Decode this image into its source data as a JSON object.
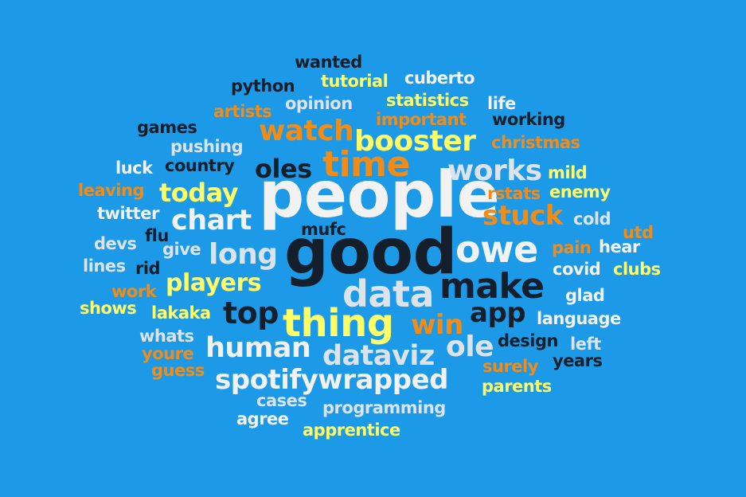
{
  "background": "#1c9ae8",
  "palette": {
    "white": "#f2f2f2",
    "dark": "#141f2b",
    "yellow": "#ffff66",
    "orange": "#f28c18",
    "light": "#dde3ea"
  },
  "words": [
    {
      "text": "people",
      "weight": 100,
      "color": "white"
    },
    {
      "text": "good",
      "weight": 100,
      "color": "dark"
    },
    {
      "text": "time",
      "weight": 60,
      "color": "orange"
    },
    {
      "text": "data",
      "weight": 60,
      "color": "light"
    },
    {
      "text": "make",
      "weight": 55,
      "color": "dark"
    },
    {
      "text": "thing",
      "weight": 55,
      "color": "yellow"
    },
    {
      "text": "owe",
      "weight": 52,
      "color": "white"
    },
    {
      "text": "booster",
      "weight": 45,
      "color": "yellow"
    },
    {
      "text": "works",
      "weight": 45,
      "color": "light"
    },
    {
      "text": "watch",
      "weight": 45,
      "color": "orange"
    },
    {
      "text": "long",
      "weight": 45,
      "color": "light"
    },
    {
      "text": "chart",
      "weight": 42,
      "color": "white"
    },
    {
      "text": "top",
      "weight": 42,
      "color": "dark"
    },
    {
      "text": "human",
      "weight": 40,
      "color": "white"
    },
    {
      "text": "dataviz",
      "weight": 40,
      "color": "light"
    },
    {
      "text": "spotifywrapped",
      "weight": 40,
      "color": "white"
    },
    {
      "text": "ole",
      "weight": 40,
      "color": "light"
    },
    {
      "text": "stuck",
      "weight": 40,
      "color": "orange"
    },
    {
      "text": "app",
      "weight": 38,
      "color": "dark"
    },
    {
      "text": "win",
      "weight": 38,
      "color": "orange"
    },
    {
      "text": "today",
      "weight": 36,
      "color": "yellow"
    },
    {
      "text": "players",
      "weight": 36,
      "color": "yellow"
    },
    {
      "text": "oles",
      "weight": 34,
      "color": "dark"
    },
    {
      "text": "wanted",
      "weight": 20,
      "color": "dark"
    },
    {
      "text": "python",
      "weight": 20,
      "color": "dark"
    },
    {
      "text": "tutorial",
      "weight": 20,
      "color": "yellow"
    },
    {
      "text": "cuberto",
      "weight": 20,
      "color": "white"
    },
    {
      "text": "artists",
      "weight": 20,
      "color": "orange"
    },
    {
      "text": "opinion",
      "weight": 20,
      "color": "light"
    },
    {
      "text": "statistics",
      "weight": 20,
      "color": "yellow"
    },
    {
      "text": "life",
      "weight": 20,
      "color": "white"
    },
    {
      "text": "games",
      "weight": 20,
      "color": "dark"
    },
    {
      "text": "important",
      "weight": 20,
      "color": "orange"
    },
    {
      "text": "working",
      "weight": 20,
      "color": "dark"
    },
    {
      "text": "pushing",
      "weight": 20,
      "color": "light"
    },
    {
      "text": "christmas",
      "weight": 20,
      "color": "orange"
    },
    {
      "text": "luck",
      "weight": 20,
      "color": "white"
    },
    {
      "text": "country",
      "weight": 20,
      "color": "dark"
    },
    {
      "text": "mild",
      "weight": 20,
      "color": "yellow"
    },
    {
      "text": "leaving",
      "weight": 20,
      "color": "orange"
    },
    {
      "text": "rstats",
      "weight": 20,
      "color": "orange"
    },
    {
      "text": "enemy",
      "weight": 20,
      "color": "yellow"
    },
    {
      "text": "twitter",
      "weight": 20,
      "color": "white"
    },
    {
      "text": "cold",
      "weight": 20,
      "color": "light"
    },
    {
      "text": "mufc",
      "weight": 20,
      "color": "dark"
    },
    {
      "text": "devs",
      "weight": 20,
      "color": "light"
    },
    {
      "text": "flu",
      "weight": 20,
      "color": "dark"
    },
    {
      "text": "utd",
      "weight": 20,
      "color": "orange"
    },
    {
      "text": "give",
      "weight": 20,
      "color": "light"
    },
    {
      "text": "pain",
      "weight": 20,
      "color": "orange"
    },
    {
      "text": "hear",
      "weight": 20,
      "color": "white"
    },
    {
      "text": "lines",
      "weight": 20,
      "color": "light"
    },
    {
      "text": "rid",
      "weight": 20,
      "color": "dark"
    },
    {
      "text": "covid",
      "weight": 20,
      "color": "white"
    },
    {
      "text": "clubs",
      "weight": 20,
      "color": "yellow"
    },
    {
      "text": "work",
      "weight": 20,
      "color": "orange"
    },
    {
      "text": "glad",
      "weight": 20,
      "color": "white"
    },
    {
      "text": "shows",
      "weight": 20,
      "color": "yellow"
    },
    {
      "text": "lakaka",
      "weight": 20,
      "color": "yellow"
    },
    {
      "text": "language",
      "weight": 20,
      "color": "white"
    },
    {
      "text": "whats",
      "weight": 20,
      "color": "light"
    },
    {
      "text": "design",
      "weight": 20,
      "color": "dark"
    },
    {
      "text": "left",
      "weight": 20,
      "color": "light"
    },
    {
      "text": "youre",
      "weight": 20,
      "color": "orange"
    },
    {
      "text": "years",
      "weight": 20,
      "color": "dark"
    },
    {
      "text": "guess",
      "weight": 20,
      "color": "orange"
    },
    {
      "text": "surely",
      "weight": 20,
      "color": "orange"
    },
    {
      "text": "parents",
      "weight": 20,
      "color": "yellow"
    },
    {
      "text": "cases",
      "weight": 20,
      "color": "light"
    },
    {
      "text": "programming",
      "weight": 20,
      "color": "light"
    },
    {
      "text": "agree",
      "weight": 20,
      "color": "white"
    },
    {
      "text": "apprentice",
      "weight": 20,
      "color": "yellow"
    }
  ]
}
